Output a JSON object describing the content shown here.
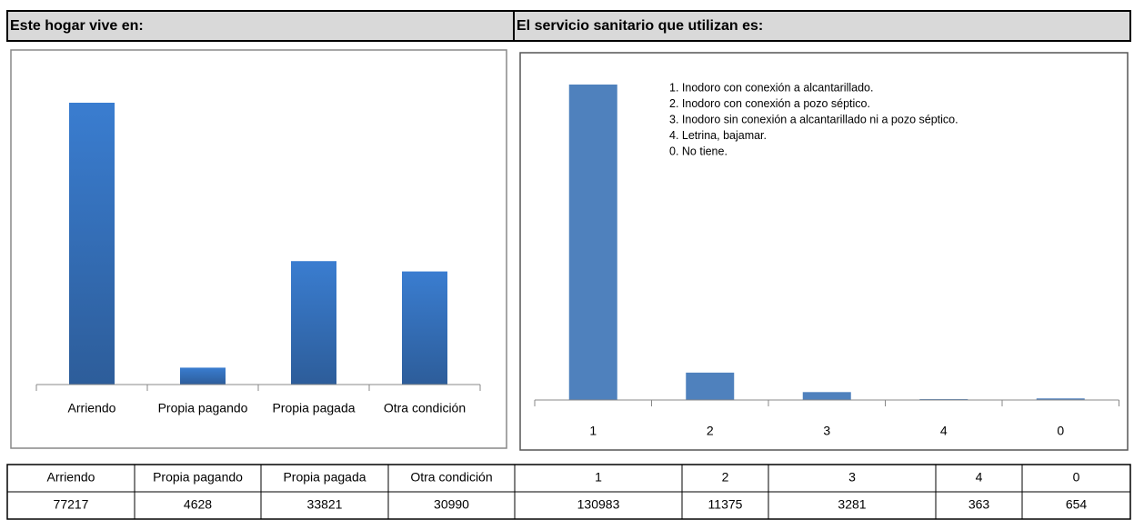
{
  "headers": [
    "Este hogar vive en:",
    "El servicio sanitario que utilizan es:"
  ],
  "chart_data": [
    {
      "type": "bar",
      "categories": [
        "Arriendo",
        "Propia pagando",
        "Propia pagada",
        "Otra condición"
      ],
      "values": [
        77217,
        4628,
        33821,
        30990
      ],
      "color": "#3a7bcc"
    },
    {
      "type": "bar",
      "categories": [
        "1",
        "2",
        "3",
        "4",
        "0"
      ],
      "values": [
        130983,
        11375,
        3281,
        363,
        654
      ],
      "color": "#4f81bd",
      "annotations": [
        "1. Inodoro con conexión a alcantarillado.",
        "2. Inodoro con conexión a pozo séptico.",
        "3. Inodoro sin conexión a alcantarillado ni a pozo séptico.",
        "4. Letrina, bajamar.",
        "0. No tiene."
      ]
    }
  ]
}
